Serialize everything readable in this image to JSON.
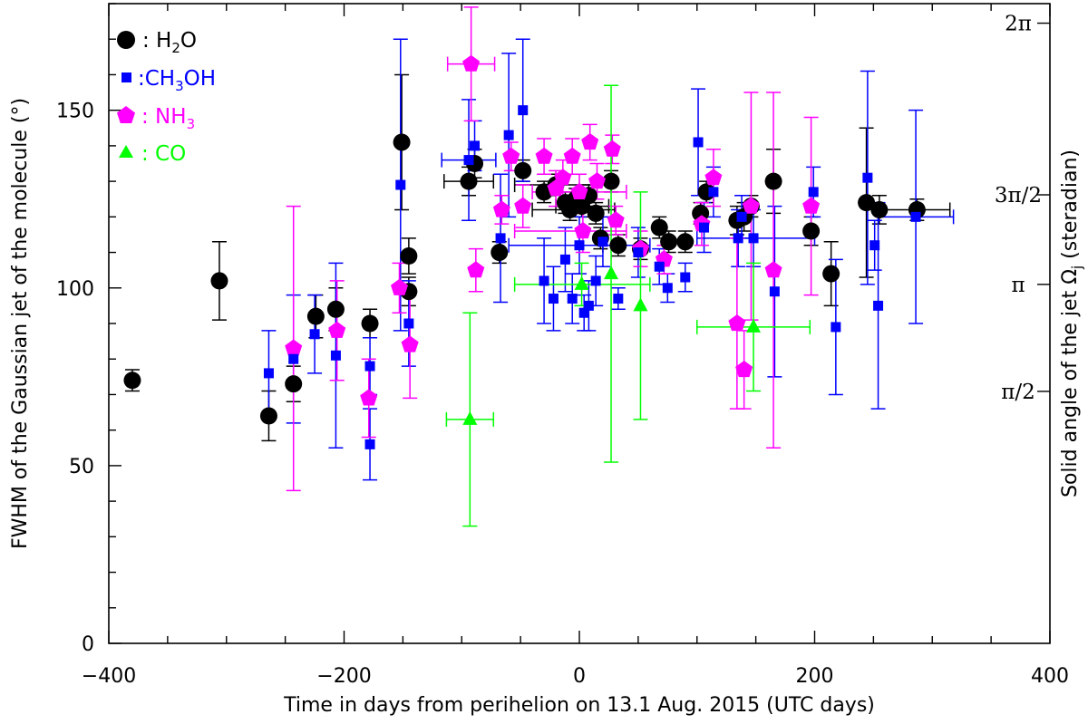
{
  "chart_data": {
    "type": "scatter",
    "title": "",
    "xlabel": "Time in days from perihelion on 13.1 Aug. 2015 (UTC days)",
    "ylabel": "FWHM of the Gaussian jet of the molecule (°)",
    "y2label": "Solid angle of the jet Ωj (steradian)",
    "y2label_main": "Solid angle of the jet Ω",
    "y2label_sub": "j",
    "y2label_tail": " (steradian)",
    "xlim": [
      -400,
      400
    ],
    "ylim": [
      0,
      180
    ],
    "xticks": [
      -400,
      -200,
      0,
      200,
      400
    ],
    "xtick_labels": [
      "−400",
      "−200",
      "0",
      "200",
      "400"
    ],
    "yticks": [
      0,
      50,
      100,
      150
    ],
    "ytick_labels": [
      "0",
      "50",
      "100",
      "150"
    ],
    "y2ticks": [
      {
        "label": "π/2",
        "deg": 70.9
      },
      {
        "label": "π",
        "deg": 101.0
      },
      {
        "label": "3π/2",
        "deg": 126.2
      },
      {
        "label": "2π",
        "deg": 174.5
      }
    ],
    "legend_position": "top-left",
    "series": [
      {
        "name": "H2O",
        "label_prefix": ": H",
        "label_sub": "2",
        "label_suffix": "O",
        "color": "#000000",
        "marker": "circle",
        "points": [
          {
            "x": -380,
            "y": 74,
            "lo": 71,
            "hi": 77
          },
          {
            "x": -306,
            "y": 102,
            "lo": 91,
            "hi": 113
          },
          {
            "x": -264,
            "y": 64,
            "lo": 57,
            "hi": 71
          },
          {
            "x": -243,
            "y": 73,
            "lo": 68,
            "hi": 78
          },
          {
            "x": -224,
            "y": 92,
            "lo": 86,
            "hi": 98
          },
          {
            "x": -207,
            "y": 94,
            "lo": 88,
            "hi": 100
          },
          {
            "x": -178,
            "y": 90,
            "lo": 86,
            "hi": 94
          },
          {
            "x": -151,
            "y": 141,
            "lo": 122,
            "hi": 160
          },
          {
            "x": -145,
            "y": 109,
            "lo": 104,
            "hi": 114
          },
          {
            "x": -145,
            "y": 99,
            "lo": 95,
            "hi": 103
          },
          {
            "x": -94,
            "y": 130,
            "lo": 126,
            "hi": 134,
            "xlo": -115,
            "xhi": -73
          },
          {
            "x": -89,
            "y": 135,
            "lo": 131,
            "hi": 139
          },
          {
            "x": -68,
            "y": 110,
            "lo": 107,
            "hi": 113
          },
          {
            "x": -48,
            "y": 133,
            "lo": 130,
            "hi": 136
          },
          {
            "x": -30,
            "y": 127,
            "lo": 124,
            "hi": 130
          },
          {
            "x": -20,
            "y": 129,
            "lo": 126,
            "hi": 132,
            "xlo": -55,
            "xhi": 15
          },
          {
            "x": -12,
            "y": 124,
            "lo": 121,
            "hi": 127
          },
          {
            "x": -8,
            "y": 122,
            "lo": 119,
            "hi": 125,
            "xlo": -40,
            "xhi": 30
          },
          {
            "x": -3,
            "y": 125,
            "lo": 122,
            "hi": 128
          },
          {
            "x": 2,
            "y": 123,
            "lo": 120,
            "hi": 126,
            "xlo": -20,
            "xhi": 25
          },
          {
            "x": 8,
            "y": 126,
            "lo": 123,
            "hi": 129
          },
          {
            "x": 14,
            "y": 121,
            "lo": 118,
            "hi": 124
          },
          {
            "x": 18,
            "y": 114,
            "lo": 111,
            "hi": 117
          },
          {
            "x": 27,
            "y": 130,
            "lo": 127,
            "hi": 133
          },
          {
            "x": 33,
            "y": 112,
            "lo": 109,
            "hi": 115,
            "xlo": 20,
            "xhi": 50
          },
          {
            "x": 52,
            "y": 111,
            "lo": 108,
            "hi": 114
          },
          {
            "x": 68,
            "y": 117,
            "lo": 114,
            "hi": 120
          },
          {
            "x": 76,
            "y": 113,
            "lo": 110,
            "hi": 116
          },
          {
            "x": 90,
            "y": 113,
            "lo": 110,
            "hi": 116
          },
          {
            "x": 103,
            "y": 121,
            "lo": 118,
            "hi": 124
          },
          {
            "x": 108,
            "y": 127,
            "lo": 124,
            "hi": 130
          },
          {
            "x": 134,
            "y": 119,
            "lo": 115,
            "hi": 123
          },
          {
            "x": 140,
            "y": 120,
            "lo": 116,
            "hi": 124
          },
          {
            "x": 146,
            "y": 123,
            "lo": 120,
            "hi": 126
          },
          {
            "x": 165,
            "y": 130,
            "lo": 121,
            "hi": 139
          },
          {
            "x": 197,
            "y": 116,
            "lo": 112,
            "hi": 120
          },
          {
            "x": 214,
            "y": 104,
            "lo": 95,
            "hi": 113
          },
          {
            "x": 244,
            "y": 124,
            "lo": 103,
            "hi": 145
          },
          {
            "x": 255,
            "y": 122,
            "lo": 118,
            "hi": 126
          },
          {
            "x": 287,
            "y": 122,
            "lo": 119,
            "hi": 125,
            "xlo": 255,
            "xhi": 315
          }
        ]
      },
      {
        "name": "CH3OH",
        "label_prefix": ":CH",
        "label_sub": "3",
        "label_suffix": "OH",
        "color": "#0000ff",
        "marker": "square",
        "points": [
          {
            "x": -264,
            "y": 76,
            "lo": 64,
            "hi": 88
          },
          {
            "x": -243,
            "y": 80,
            "lo": 62,
            "hi": 98
          },
          {
            "x": -225,
            "y": 87,
            "lo": 76,
            "hi": 98
          },
          {
            "x": -207,
            "y": 81,
            "lo": 55,
            "hi": 107
          },
          {
            "x": -178,
            "y": 78,
            "lo": 70,
            "hi": 86
          },
          {
            "x": -178,
            "y": 56,
            "lo": 46,
            "hi": 66
          },
          {
            "x": -152,
            "y": 129,
            "lo": 88,
            "hi": 170
          },
          {
            "x": -145,
            "y": 90,
            "lo": 78,
            "hi": 102
          },
          {
            "x": -94,
            "y": 136,
            "lo": 119,
            "hi": 153,
            "xlo": -117,
            "xhi": -71
          },
          {
            "x": -89,
            "y": 140,
            "lo": 133,
            "hi": 147
          },
          {
            "x": -67,
            "y": 114,
            "lo": 96,
            "hi": 132
          },
          {
            "x": -60,
            "y": 143,
            "lo": 120,
            "hi": 166
          },
          {
            "x": -48,
            "y": 150,
            "lo": 130,
            "hi": 170
          },
          {
            "x": -30,
            "y": 102,
            "lo": 90,
            "hi": 114
          },
          {
            "x": -22,
            "y": 97,
            "lo": 88,
            "hi": 106
          },
          {
            "x": -12,
            "y": 108,
            "lo": 99,
            "hi": 117
          },
          {
            "x": -6,
            "y": 97,
            "lo": 90,
            "hi": 104
          },
          {
            "x": 0,
            "y": 112,
            "lo": 104,
            "hi": 120,
            "xlo": -60,
            "xhi": 60
          },
          {
            "x": 4,
            "y": 93,
            "lo": 88,
            "hi": 98
          },
          {
            "x": 8,
            "y": 95,
            "lo": 88,
            "hi": 102
          },
          {
            "x": 14,
            "y": 102,
            "lo": 95,
            "hi": 109
          },
          {
            "x": 20,
            "y": 113,
            "lo": 106,
            "hi": 120
          },
          {
            "x": 33,
            "y": 97,
            "lo": 94,
            "hi": 100
          },
          {
            "x": 50,
            "y": 110,
            "lo": 103,
            "hi": 117
          },
          {
            "x": 68,
            "y": 106,
            "lo": 101,
            "hi": 111
          },
          {
            "x": 75,
            "y": 100,
            "lo": 96,
            "hi": 104
          },
          {
            "x": 90,
            "y": 103,
            "lo": 99,
            "hi": 107
          },
          {
            "x": 101,
            "y": 141,
            "lo": 126,
            "hi": 156
          },
          {
            "x": 106,
            "y": 117,
            "lo": 110,
            "hi": 124
          },
          {
            "x": 114,
            "y": 127,
            "lo": 120,
            "hi": 134
          },
          {
            "x": 135,
            "y": 114,
            "lo": 106,
            "hi": 122
          },
          {
            "x": 138,
            "y": 120,
            "lo": 114,
            "hi": 126
          },
          {
            "x": 148,
            "y": 114,
            "lo": 106,
            "hi": 122,
            "xlo": 100,
            "xhi": 200
          },
          {
            "x": 166,
            "y": 99,
            "lo": 75,
            "hi": 123
          },
          {
            "x": 199,
            "y": 127,
            "lo": 120,
            "hi": 134
          },
          {
            "x": 218,
            "y": 89,
            "lo": 70,
            "hi": 108
          },
          {
            "x": 245,
            "y": 131,
            "lo": 101,
            "hi": 161
          },
          {
            "x": 251,
            "y": 112,
            "lo": 105,
            "hi": 119
          },
          {
            "x": 254,
            "y": 95,
            "lo": 66,
            "hi": 124
          },
          {
            "x": 286,
            "y": 120,
            "lo": 90,
            "hi": 150,
            "xlo": 254,
            "xhi": 318
          }
        ]
      },
      {
        "name": "NH3",
        "label_prefix": ": NH",
        "label_sub": "3",
        "label_suffix": "",
        "color": "#ff00ff",
        "marker": "pentagon",
        "points": [
          {
            "x": -243,
            "y": 83,
            "lo": 43,
            "hi": 123
          },
          {
            "x": -206,
            "y": 88,
            "lo": 74,
            "hi": 102
          },
          {
            "x": -179,
            "y": 69,
            "lo": 58,
            "hi": 80
          },
          {
            "x": -153,
            "y": 100,
            "lo": 93,
            "hi": 107
          },
          {
            "x": -144,
            "y": 84,
            "lo": 69,
            "hi": 99
          },
          {
            "x": -92,
            "y": 163,
            "lo": 147,
            "hi": 179,
            "xlo": -112,
            "xhi": -72
          },
          {
            "x": -88,
            "y": 105,
            "lo": 99,
            "hi": 111
          },
          {
            "x": -66,
            "y": 122,
            "lo": 118,
            "hi": 126
          },
          {
            "x": -58,
            "y": 137,
            "lo": 133,
            "hi": 141
          },
          {
            "x": -48,
            "y": 123,
            "lo": 117,
            "hi": 129
          },
          {
            "x": -30,
            "y": 137,
            "lo": 132,
            "hi": 142
          },
          {
            "x": -20,
            "y": 128,
            "lo": 123,
            "hi": 133
          },
          {
            "x": -14,
            "y": 131,
            "lo": 126,
            "hi": 136
          },
          {
            "x": -6,
            "y": 137,
            "lo": 132,
            "hi": 142
          },
          {
            "x": 0,
            "y": 127,
            "lo": 122,
            "hi": 132,
            "xlo": -40,
            "xhi": 40
          },
          {
            "x": 3,
            "y": 116,
            "lo": 110,
            "hi": 122,
            "xlo": -55,
            "xhi": 40
          },
          {
            "x": 9,
            "y": 141,
            "lo": 136,
            "hi": 146
          },
          {
            "x": 15,
            "y": 130,
            "lo": 125,
            "hi": 135
          },
          {
            "x": 28,
            "y": 139,
            "lo": 135,
            "hi": 143
          },
          {
            "x": 31,
            "y": 119,
            "lo": 115,
            "hi": 123
          },
          {
            "x": 52,
            "y": 111,
            "lo": 106,
            "hi": 116
          },
          {
            "x": 72,
            "y": 108,
            "lo": 104,
            "hi": 112
          },
          {
            "x": 104,
            "y": 118,
            "lo": 112,
            "hi": 124
          },
          {
            "x": 114,
            "y": 131,
            "lo": 123,
            "hi": 139
          },
          {
            "x": 134,
            "y": 90,
            "lo": 66,
            "hi": 114
          },
          {
            "x": 140,
            "y": 77,
            "lo": 66,
            "hi": 88
          },
          {
            "x": 146,
            "y": 123,
            "lo": 91,
            "hi": 155
          },
          {
            "x": 165,
            "y": 105,
            "lo": 55,
            "hi": 155
          },
          {
            "x": 197,
            "y": 123,
            "lo": 98,
            "hi": 148
          }
        ]
      },
      {
        "name": "CO",
        "label_prefix": ": CO",
        "label_sub": "",
        "label_suffix": "",
        "color": "#00ff00",
        "marker": "triangle",
        "points": [
          {
            "x": -93,
            "y": 63,
            "lo": 33,
            "hi": 93,
            "xlo": -113,
            "xhi": -73
          },
          {
            "x": 2,
            "y": 101,
            "lo": 95,
            "hi": 107,
            "xlo": -55,
            "xhi": 60
          },
          {
            "x": 27,
            "y": 104,
            "lo": 51,
            "hi": 157
          },
          {
            "x": 52,
            "y": 95,
            "lo": 63,
            "hi": 127
          },
          {
            "x": 148,
            "y": 89,
            "lo": 71,
            "hi": 107,
            "xlo": 100,
            "xhi": 196
          }
        ]
      }
    ]
  }
}
